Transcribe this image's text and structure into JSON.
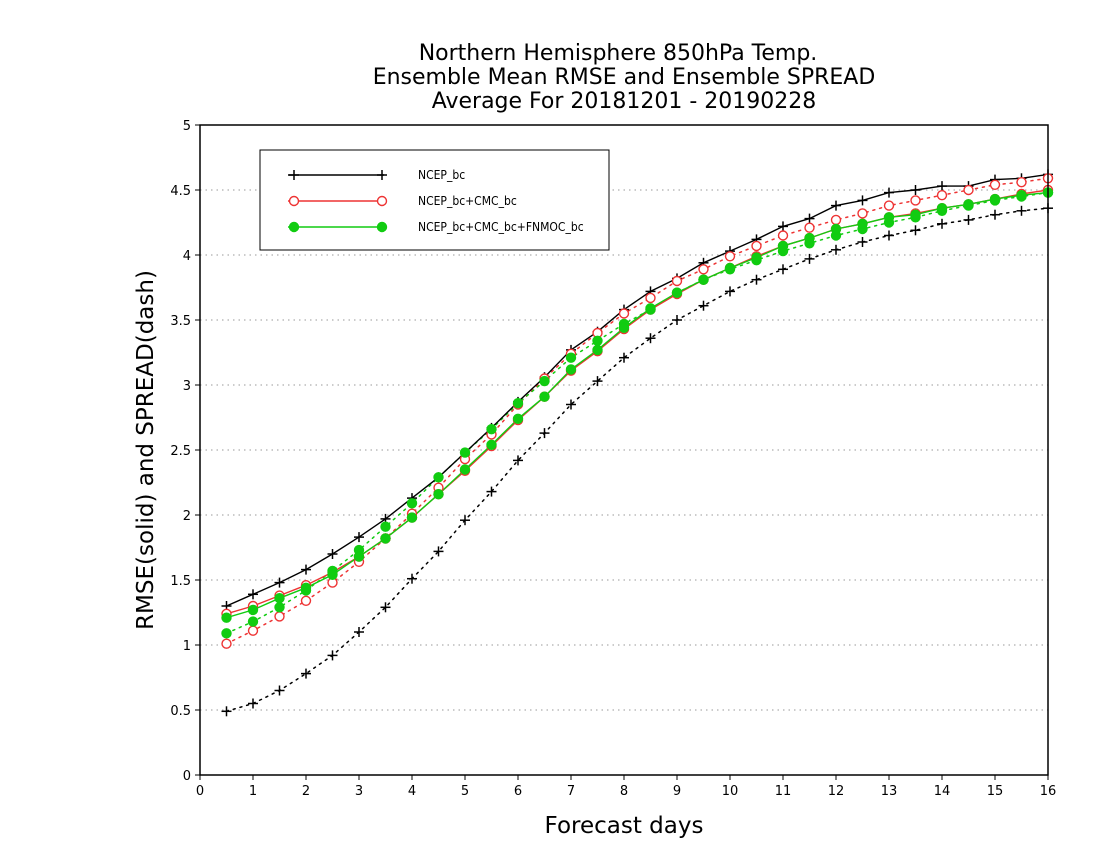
{
  "chart_data": {
    "type": "line",
    "title": [
      "Northern Hemisphere 850hPa Temp.",
      "Ensemble Mean RMSE and Ensemble SPREAD",
      "Average For 20181201 - 20190228"
    ],
    "xlabel": "Forecast days",
    "ylabel": "RMSE(solid) and SPREAD(dash)",
    "xlim": [
      0,
      16
    ],
    "ylim": [
      0,
      5
    ],
    "x_ticks": [
      "0",
      "1",
      "2",
      "3",
      "4",
      "5",
      "6",
      "7",
      "8",
      "9",
      "10",
      "11",
      "12",
      "13",
      "14",
      "15",
      "16"
    ],
    "y_ticks": [
      "0",
      "0.5",
      "1",
      "1.5",
      "2",
      "2.5",
      "3",
      "3.5",
      "4",
      "4.5",
      "5"
    ],
    "grid": true,
    "legend_position": "top-left",
    "x": [
      0.5,
      1,
      1.5,
      2,
      2.5,
      3,
      3.5,
      4,
      4.5,
      5,
      5.5,
      6,
      6.5,
      7,
      7.5,
      8,
      8.5,
      9,
      9.5,
      10,
      10.5,
      11,
      11.5,
      12,
      12.5,
      13,
      13.5,
      14,
      14.5,
      15,
      15.5,
      16
    ],
    "series": [
      {
        "name": "NCEP_bc",
        "color": "#000000",
        "marker": "plus",
        "rmse": [
          1.3,
          1.39,
          1.48,
          1.58,
          1.7,
          1.83,
          1.97,
          2.13,
          2.29,
          2.48,
          2.67,
          2.87,
          3.06,
          3.27,
          3.41,
          3.58,
          3.72,
          3.82,
          3.94,
          4.03,
          4.12,
          4.22,
          4.28,
          4.38,
          4.42,
          4.48,
          4.5,
          4.53,
          4.53,
          4.58,
          4.59,
          4.62
        ],
        "spread": [
          0.49,
          0.55,
          0.65,
          0.78,
          0.92,
          1.1,
          1.29,
          1.51,
          1.72,
          1.96,
          2.18,
          2.42,
          2.63,
          2.85,
          3.03,
          3.21,
          3.36,
          3.5,
          3.61,
          3.72,
          3.81,
          3.89,
          3.97,
          4.04,
          4.1,
          4.15,
          4.19,
          4.24,
          4.27,
          4.31,
          4.34,
          4.36
        ]
      },
      {
        "name": "NCEP_bc+CMC_bc",
        "color": "#ee3333",
        "marker": "open-circle",
        "rmse": [
          1.24,
          1.3,
          1.38,
          1.46,
          1.56,
          1.68,
          1.82,
          1.98,
          2.16,
          2.34,
          2.53,
          2.73,
          2.91,
          3.11,
          3.26,
          3.43,
          3.58,
          3.7,
          3.81,
          3.9,
          3.99,
          4.07,
          4.13,
          4.2,
          4.24,
          4.29,
          4.32,
          4.36,
          4.39,
          4.43,
          4.47,
          4.5
        ],
        "spread": [
          1.01,
          1.11,
          1.22,
          1.34,
          1.48,
          1.64,
          1.82,
          2.01,
          2.21,
          2.43,
          2.62,
          2.85,
          3.05,
          3.24,
          3.4,
          3.55,
          3.67,
          3.8,
          3.89,
          3.99,
          4.07,
          4.15,
          4.21,
          4.27,
          4.32,
          4.38,
          4.42,
          4.46,
          4.5,
          4.54,
          4.56,
          4.59
        ]
      },
      {
        "name": "NCEP_bc+CMC_bc+FNMOC_bc",
        "color": "#11cc11",
        "marker": "filled-circle",
        "rmse": [
          1.21,
          1.27,
          1.36,
          1.44,
          1.54,
          1.68,
          1.82,
          1.98,
          2.16,
          2.35,
          2.54,
          2.74,
          2.91,
          3.12,
          3.27,
          3.44,
          3.59,
          3.71,
          3.81,
          3.9,
          3.98,
          4.07,
          4.13,
          4.2,
          4.24,
          4.29,
          4.31,
          4.36,
          4.39,
          4.43,
          4.46,
          4.48
        ],
        "spread": [
          1.09,
          1.18,
          1.29,
          1.42,
          1.57,
          1.73,
          1.91,
          2.09,
          2.29,
          2.48,
          2.66,
          2.86,
          3.03,
          3.21,
          3.34,
          3.47,
          3.58,
          3.71,
          3.81,
          3.89,
          3.96,
          4.03,
          4.09,
          4.15,
          4.2,
          4.25,
          4.29,
          4.34,
          4.38,
          4.42,
          4.45,
          4.48
        ]
      }
    ]
  }
}
